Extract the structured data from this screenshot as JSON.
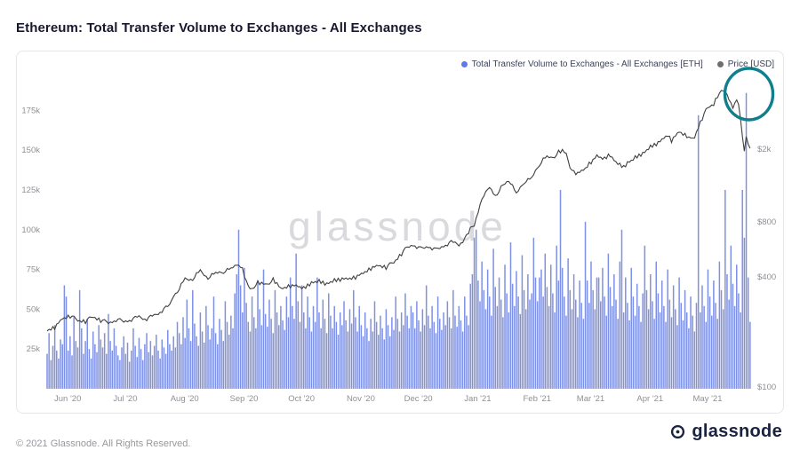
{
  "page": {
    "title": "Ethereum: Total Transfer Volume to Exchanges - All Exchanges",
    "watermark": "glassnode",
    "footer_copyright": "© 2021 Glassnode. All Rights Reserved.",
    "footer_brand": "glassnode"
  },
  "legend": {
    "volume_label": "Total Transfer Volume to Exchanges - All Exchanges [ETH]",
    "price_label": "Price [USD]"
  },
  "colors": {
    "volume_bar": "#7388e3",
    "price_line": "#3f3f3f",
    "legend_volume_dot": "#5f7ae0",
    "legend_price_dot": "#6e6e6e",
    "annotation_circle": "#0f7f8e",
    "watermark": "#d2d2d7",
    "tick_text": "#8f9097"
  },
  "chart_data": {
    "type": "bar+line",
    "title": "Ethereum: Total Transfer Volume to Exchanges - All Exchanges",
    "x_axis": {
      "total_days": 368,
      "range_start": "2020-05-24",
      "range_end": "2021-05-26",
      "month_ticks": [
        {
          "label": "Jun '20",
          "day": 8
        },
        {
          "label": "Jul '20",
          "day": 38
        },
        {
          "label": "Aug '20",
          "day": 69
        },
        {
          "label": "Sep '20",
          "day": 100
        },
        {
          "label": "Oct '20",
          "day": 130
        },
        {
          "label": "Nov '20",
          "day": 161
        },
        {
          "label": "Dec '20",
          "day": 191
        },
        {
          "label": "Jan '21",
          "day": 222
        },
        {
          "label": "Feb '21",
          "day": 253
        },
        {
          "label": "Mar '21",
          "day": 281
        },
        {
          "label": "Apr '21",
          "day": 312
        },
        {
          "label": "May '21",
          "day": 342
        }
      ]
    },
    "y_left": {
      "series": "Total Transfer Volume to Exchanges - All Exchanges [ETH]",
      "unit": "thousand ETH",
      "scale": "linear",
      "ticks": [
        {
          "label": "25k",
          "value_k": 25
        },
        {
          "label": "50k",
          "value_k": 50
        },
        {
          "label": "75k",
          "value_k": 75
        },
        {
          "label": "100k",
          "value_k": 100
        },
        {
          "label": "125k",
          "value_k": 125
        },
        {
          "label": "150k",
          "value_k": 150
        },
        {
          "label": "175k",
          "value_k": 175
        }
      ]
    },
    "y_right": {
      "series": "Price [USD]",
      "scale": "log",
      "ticks": [
        {
          "label": "$100",
          "value": 100
        },
        {
          "label": "$400",
          "value": 400
        },
        {
          "label": "$800",
          "value": 800
        },
        {
          "label": "$2k",
          "value": 2000
        }
      ]
    },
    "volume_series": {
      "name": "Total Transfer Volume to Exchanges - All Exchanges [ETH]",
      "unit": "thousand ETH",
      "values_k": [
        22,
        35,
        18,
        27,
        40,
        24,
        19,
        31,
        28,
        65,
        58,
        24,
        33,
        21,
        45,
        30,
        26,
        62,
        38,
        22,
        30,
        44,
        25,
        19,
        36,
        28,
        23,
        40,
        31,
        26,
        35,
        22,
        47,
        30,
        24,
        38,
        27,
        21,
        18,
        26,
        33,
        22,
        29,
        17,
        24,
        38,
        27,
        20,
        32,
        25,
        18,
        28,
        35,
        23,
        30,
        21,
        27,
        34,
        24,
        19,
        31,
        26,
        22,
        37,
        28,
        24,
        33,
        26,
        42,
        35,
        28,
        45,
        32,
        56,
        38,
        30,
        62,
        41,
        33,
        27,
        48,
        36,
        29,
        52,
        40,
        31,
        38,
        58,
        35,
        28,
        44,
        37,
        30,
        55,
        42,
        34,
        46,
        38,
        60,
        72,
        100,
        65,
        48,
        76,
        54,
        42,
        36,
        58,
        45,
        38,
        68,
        50,
        40,
        75,
        47,
        39,
        56,
        44,
        35,
        62,
        48,
        40,
        52,
        43,
        37,
        58,
        45,
        70,
        52,
        44,
        85,
        55,
        42,
        65,
        48,
        38,
        58,
        45,
        36,
        52,
        42,
        70,
        48,
        38,
        56,
        44,
        35,
        60,
        46,
        38,
        52,
        42,
        34,
        48,
        40,
        55,
        43,
        36,
        50,
        41,
        62,
        45,
        36,
        52,
        40,
        33,
        48,
        38,
        30,
        44,
        36,
        55,
        42,
        34,
        46,
        38,
        31,
        50,
        40,
        33,
        45,
        37,
        58,
        44,
        36,
        48,
        40,
        60,
        46,
        38,
        52,
        48,
        38,
        55,
        43,
        36,
        50,
        40,
        65,
        46,
        38,
        52,
        42,
        35,
        58,
        44,
        37,
        48,
        40,
        55,
        45,
        38,
        62,
        46,
        39,
        52,
        43,
        36,
        58,
        46,
        40,
        66,
        72,
        95,
        100,
        68,
        55,
        80,
        62,
        50,
        75,
        58,
        46,
        88,
        64,
        52,
        70,
        56,
        45,
        78,
        60,
        48,
        92,
        66,
        52,
        74,
        58,
        47,
        84,
        62,
        50,
        72,
        56,
        60,
        95,
        70,
        55,
        70,
        75,
        58,
        85,
        64,
        52,
        78,
        60,
        48,
        90,
        68,
        125,
        76,
        58,
        46,
        82,
        62,
        50,
        72,
        56,
        45,
        68,
        54,
        44,
        105,
        68,
        54,
        80,
        62,
        50,
        70,
        70,
        55,
        76,
        58,
        46,
        85,
        64,
        52,
        72,
        56,
        44,
        80,
        100,
        48,
        70,
        54,
        43,
        76,
        58,
        46,
        66,
        52,
        42,
        60,
        90,
        62,
        50,
        72,
        55,
        44,
        80,
        60,
        48,
        68,
        52,
        42,
        75,
        56,
        45,
        65,
        50,
        40,
        70,
        54,
        43,
        62,
        48,
        38,
        58,
        46,
        36,
        54,
        172,
        48,
        65,
        52,
        42,
        75,
        58,
        46,
        68,
        54,
        44,
        80,
        62,
        50,
        125,
        72,
        56,
        90,
        66,
        52,
        78,
        60,
        48,
        125,
        95,
        186,
        70,
        42
      ]
    },
    "price_series": {
      "name": "Price [USD]",
      "unit": "USD",
      "points": [
        [
          0,
          205
        ],
        [
          4,
          212
        ],
        [
          8,
          238
        ],
        [
          12,
          244
        ],
        [
          16,
          232
        ],
        [
          20,
          228
        ],
        [
          24,
          243
        ],
        [
          28,
          231
        ],
        [
          32,
          225
        ],
        [
          36,
          233
        ],
        [
          40,
          229
        ],
        [
          44,
          234
        ],
        [
          48,
          241
        ],
        [
          52,
          236
        ],
        [
          56,
          245
        ],
        [
          60,
          262
        ],
        [
          64,
          278
        ],
        [
          66,
          318
        ],
        [
          69,
          345
        ],
        [
          72,
          388
        ],
        [
          76,
          392
        ],
        [
          80,
          430
        ],
        [
          84,
          398
        ],
        [
          88,
          416
        ],
        [
          92,
          428
        ],
        [
          96,
          440
        ],
        [
          100,
          475
        ],
        [
          102,
          438
        ],
        [
          104,
          375
        ],
        [
          106,
          340
        ],
        [
          110,
          372
        ],
        [
          114,
          362
        ],
        [
          118,
          386
        ],
        [
          122,
          344
        ],
        [
          126,
          354
        ],
        [
          130,
          358
        ],
        [
          134,
          346
        ],
        [
          138,
          372
        ],
        [
          142,
          378
        ],
        [
          146,
          366
        ],
        [
          150,
          382
        ],
        [
          154,
          390
        ],
        [
          158,
          394
        ],
        [
          161,
          398
        ],
        [
          165,
          422
        ],
        [
          169,
          445
        ],
        [
          173,
          465
        ],
        [
          177,
          450
        ],
        [
          181,
          482
        ],
        [
          185,
          535
        ],
        [
          188,
          580
        ],
        [
          191,
          602
        ],
        [
          195,
          570
        ],
        [
          199,
          590
        ],
        [
          203,
          562
        ],
        [
          207,
          594
        ],
        [
          211,
          618
        ],
        [
          215,
          602
        ],
        [
          218,
          645
        ],
        [
          220,
          685
        ],
        [
          221,
          735
        ],
        [
          223,
          772
        ],
        [
          225,
          920
        ],
        [
          227,
          1040
        ],
        [
          229,
          1152
        ],
        [
          231,
          1255
        ],
        [
          233,
          1165
        ],
        [
          235,
          1095
        ],
        [
          237,
          1235
        ],
        [
          239,
          1312
        ],
        [
          241,
          1365
        ],
        [
          243,
          1245
        ],
        [
          245,
          1130
        ],
        [
          247,
          1226
        ],
        [
          249,
          1325
        ],
        [
          251,
          1346
        ],
        [
          253,
          1376
        ],
        [
          255,
          1515
        ],
        [
          257,
          1655
        ],
        [
          259,
          1746
        ],
        [
          261,
          1805
        ],
        [
          263,
          1786
        ],
        [
          265,
          1836
        ],
        [
          267,
          1925
        ],
        [
          269,
          1956
        ],
        [
          271,
          1875
        ],
        [
          273,
          1616
        ],
        [
          275,
          1486
        ],
        [
          277,
          1466
        ],
        [
          281,
          1566
        ],
        [
          283,
          1656
        ],
        [
          285,
          1726
        ],
        [
          287,
          1836
        ],
        [
          289,
          1796
        ],
        [
          291,
          1766
        ],
        [
          293,
          1846
        ],
        [
          295,
          1786
        ],
        [
          297,
          1696
        ],
        [
          299,
          1636
        ],
        [
          301,
          1596
        ],
        [
          303,
          1686
        ],
        [
          305,
          1726
        ],
        [
          307,
          1796
        ],
        [
          309,
          1846
        ],
        [
          312,
          1926
        ],
        [
          314,
          2016
        ],
        [
          316,
          2086
        ],
        [
          318,
          2136
        ],
        [
          320,
          2206
        ],
        [
          322,
          2316
        ],
        [
          324,
          2396
        ],
        [
          326,
          2226
        ],
        [
          328,
          2366
        ],
        [
          330,
          2506
        ],
        [
          332,
          2426
        ],
        [
          334,
          2366
        ],
        [
          336,
          2246
        ],
        [
          338,
          2326
        ],
        [
          340,
          2646
        ],
        [
          342,
          2946
        ],
        [
          344,
          3246
        ],
        [
          346,
          3446
        ],
        [
          348,
          3526
        ],
        [
          350,
          3916
        ],
        [
          352,
          4086
        ],
        [
          354,
          4176
        ],
        [
          356,
          3786
        ],
        [
          358,
          3426
        ],
        [
          360,
          3626
        ],
        [
          361,
          3486
        ],
        [
          362,
          2956
        ],
        [
          363,
          2346
        ],
        [
          364,
          1986
        ],
        [
          365,
          2356
        ],
        [
          366,
          2186
        ],
        [
          367,
          1996
        ]
      ]
    },
    "annotation": {
      "type": "circle",
      "day": 365,
      "note": "highlighted volume spike"
    }
  }
}
